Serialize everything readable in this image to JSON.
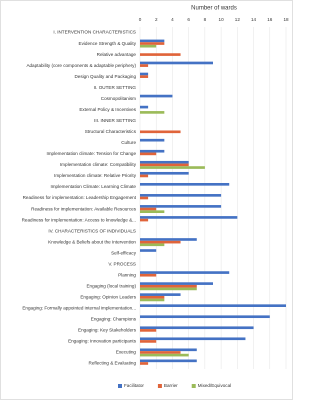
{
  "chart_data": {
    "type": "bar",
    "orientation": "horizontal",
    "x_label": "Number of wards",
    "categories": [
      "I.   INTERVENTION CHARACTERISTICS",
      "Evidence Strength & Quality",
      "Relative advantage",
      "Adaptability (core components & adaptable periphery)",
      "Design Quality and Packaging",
      "II.   OUTER SETTING",
      "Cosmopolitanism",
      "External Policy & Incentives",
      "III.   INNER SETTING",
      "Structural Characteristics",
      "Culture",
      "Implementation climate: Tension for Change",
      "Implementation climate: Compatibility",
      "Implementation climate: Relative Priority",
      "Implementation Climate: Learning Climate",
      "Readiness for implementation: Leadership Engagement",
      "Readiness for implementation: Available Resources",
      "Readiness for implementation: Access to knowledge &...",
      "IV.   CHARACTERISTICS OF INDIVIDUALS",
      "Knowledge & Beliefs about the Intervention",
      "Self-efficacy",
      "V.   PROCESS",
      "Planning",
      "Engaging (local training)",
      "Engaging: Opinion Leaders",
      "Engaging: Formally appointed internal implementation...",
      "Engaging: Champions",
      "Engaging: Key Stakeholders",
      "Engaging: Innovation participants",
      "Executing",
      "Reflecting & Evaluating"
    ],
    "series": [
      {
        "name": "Facilitator",
        "color": "#4472c4",
        "values": [
          null,
          3,
          0,
          9,
          1,
          null,
          4,
          1,
          null,
          0,
          3,
          3,
          6,
          6,
          11,
          10,
          10,
          12,
          null,
          7,
          2,
          null,
          11,
          9,
          5,
          18,
          16,
          14,
          13,
          7,
          7
        ]
      },
      {
        "name": "Barrier",
        "color": "#e0643a",
        "values": [
          null,
          3,
          5,
          1,
          1,
          null,
          0,
          0,
          null,
          5,
          0,
          2,
          6,
          1,
          0,
          1,
          2,
          1,
          null,
          5,
          0,
          null,
          2,
          7,
          3,
          0,
          0,
          2,
          2,
          5,
          1
        ]
      },
      {
        "name": "Mixed/Equivocal",
        "color": "#9bbb59",
        "values": [
          null,
          2,
          0,
          0,
          0,
          null,
          0,
          3,
          null,
          0,
          0,
          0,
          8,
          0,
          0,
          0,
          3,
          0,
          null,
          3,
          0,
          null,
          0,
          7,
          3,
          0,
          0,
          0,
          0,
          6,
          0
        ]
      }
    ],
    "xlim": [
      0,
      18
    ],
    "xticks": [
      0,
      2,
      4,
      6,
      8,
      10,
      12,
      14,
      16,
      18
    ],
    "grid": true,
    "legend": "bottom"
  }
}
